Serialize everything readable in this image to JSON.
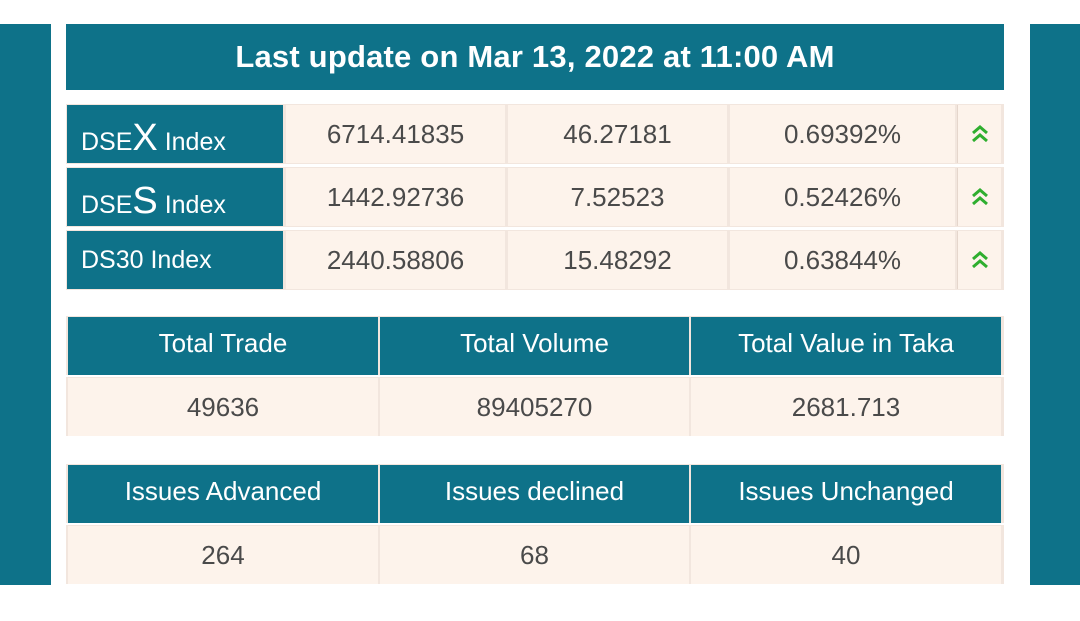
{
  "banner": {
    "text": "Last update on Mar 13, 2022 at 11:00 AM"
  },
  "indices": [
    {
      "name_prefix": "DSE",
      "name_big": "X",
      "name_suffix": " Index",
      "value": "6714.41835",
      "change": "46.27181",
      "percent": "0.69392%",
      "trend_icon": "double-chevron-up-icon"
    },
    {
      "name_prefix": "DSE",
      "name_big": "S",
      "name_suffix": " Index",
      "value": "1442.92736",
      "change": "7.52523",
      "percent": "0.52426%",
      "trend_icon": "double-chevron-up-icon"
    },
    {
      "name": "DS30 Index",
      "value": "2440.58806",
      "change": "15.48292",
      "percent": "0.63844%",
      "trend_icon": "double-chevron-up-icon"
    }
  ],
  "trade_table": {
    "headers": [
      "Total Trade",
      "Total Volume",
      "Total Value in Taka"
    ],
    "values": [
      "49636",
      "89405270",
      "2681.713"
    ]
  },
  "issues_table": {
    "headers": [
      "Issues Advanced",
      "Issues declined",
      "Issues Unchanged"
    ],
    "values": [
      "264",
      "68",
      "40"
    ]
  },
  "colors": {
    "header_bg": "#0e7289",
    "cell_bg": "#fdf3eb",
    "trend_up": "#2fae2f"
  }
}
